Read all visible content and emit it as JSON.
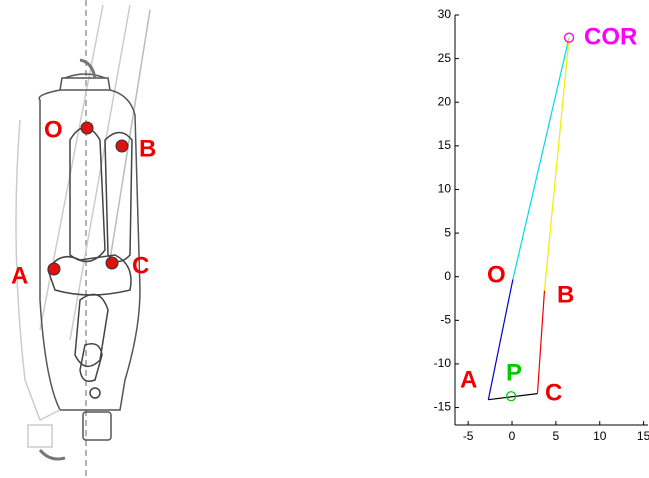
{
  "figure": {
    "labels": [
      "O",
      "B",
      "A",
      "C"
    ]
  },
  "chart_data": {
    "type": "line",
    "xlim": [
      -6.5,
      15.5
    ],
    "ylim": [
      -17,
      30
    ],
    "xticks": [
      -5,
      0,
      5,
      10,
      15
    ],
    "yticks": [
      -15,
      -10,
      -5,
      0,
      5,
      10,
      15,
      20,
      25,
      30
    ],
    "series": [
      {
        "color": "#0000cc",
        "x": [
          -2.7,
          0.1
        ],
        "y": [
          -14.1,
          -0.3
        ]
      },
      {
        "color": "#ee0000",
        "x": [
          2.9,
          3.7
        ],
        "y": [
          -13.4,
          -1.6
        ]
      },
      {
        "color": "#000000",
        "x": [
          -2.7,
          2.9
        ],
        "y": [
          -14.1,
          -13.4
        ]
      },
      {
        "color": "#00dddd",
        "x": [
          0.1,
          6.5
        ],
        "y": [
          -0.3,
          27.4
        ]
      },
      {
        "color": "#eeee00",
        "x": [
          3.7,
          6.5
        ],
        "y": [
          -1.6,
          27.4
        ]
      },
      {
        "color": "#ff00ff",
        "marker": "circle",
        "x": [
          6.5
        ],
        "y": [
          27.4
        ]
      },
      {
        "color": "#00cc00",
        "marker": "circle",
        "x": [
          -0.1
        ],
        "y": [
          -13.7
        ]
      }
    ],
    "annotations": [
      {
        "text": "COR",
        "color": "#ff00ff"
      },
      {
        "text": "O",
        "color": "#ee0000"
      },
      {
        "text": "B",
        "color": "#ee0000"
      },
      {
        "text": "A",
        "color": "#ee0000"
      },
      {
        "text": "P",
        "color": "#00cc00"
      },
      {
        "text": "C",
        "color": "#ee0000"
      }
    ]
  }
}
